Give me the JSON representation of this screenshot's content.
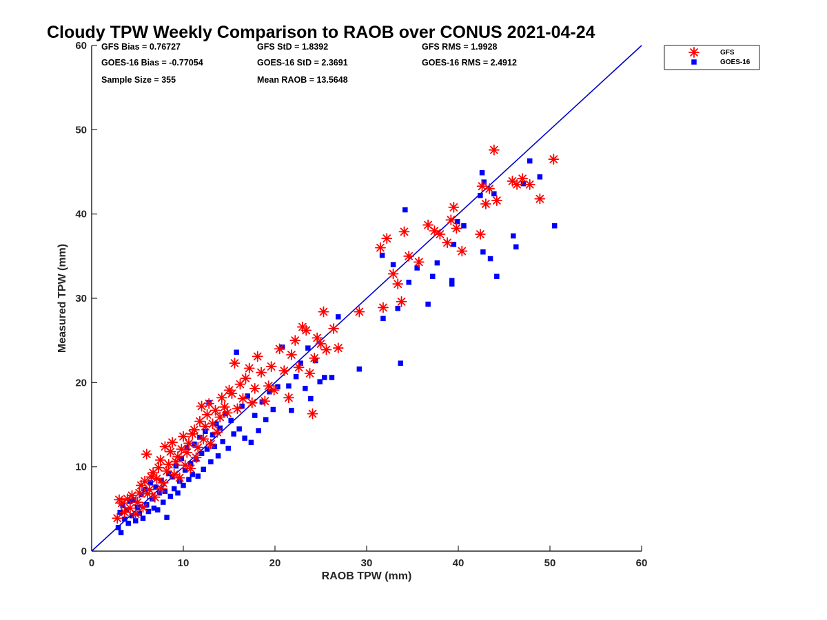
{
  "chart_data": {
    "type": "scatter",
    "title": "Cloudy TPW Weekly Comparison to RAOB over CONUS 2021-04-24",
    "xlabel": "RAOB TPW (mm)",
    "ylabel": "Measured TPW (mm)",
    "xlim": [
      0,
      60
    ],
    "ylim": [
      0,
      60
    ],
    "xticks": [
      "0",
      "10",
      "20",
      "30",
      "40",
      "50",
      "60"
    ],
    "yticks": [
      "0",
      "10",
      "20",
      "30",
      "40",
      "50",
      "60"
    ],
    "grid": false,
    "legend_position": "top-right outside",
    "stats": [
      [
        "GFS Bias = 0.76727",
        "GFS StD = 1.8392",
        "GFS RMS = 1.9928"
      ],
      [
        "GOES-16 Bias = -0.77054",
        "GOES-16 StD = 2.3691",
        "GOES-16 RMS = 2.4912"
      ],
      [
        "Sample Size = 355",
        "Mean RAOB = 13.5648",
        ""
      ]
    ],
    "reference_line": {
      "from": [
        0,
        0
      ],
      "to": [
        60,
        60
      ],
      "color": "#0000cc"
    },
    "series": [
      {
        "name": "GFS",
        "marker": "asterisk",
        "color": "#ff0000",
        "points": [
          [
            2.8,
            3.9
          ],
          [
            3.0,
            6.1
          ],
          [
            3.3,
            5.7
          ],
          [
            3.6,
            4.6
          ],
          [
            3.9,
            6.2
          ],
          [
            4.2,
            5.1
          ],
          [
            4.4,
            6.6
          ],
          [
            4.8,
            4.4
          ],
          [
            5.0,
            5.8
          ],
          [
            5.2,
            6.9
          ],
          [
            5.4,
            7.8
          ],
          [
            5.6,
            5.2
          ],
          [
            5.8,
            8.3
          ],
          [
            6.0,
            11.5
          ],
          [
            6.1,
            6.8
          ],
          [
            6.3,
            7.3
          ],
          [
            6.5,
            8.8
          ],
          [
            6.7,
            9.3
          ],
          [
            6.9,
            6.4
          ],
          [
            7.1,
            8.6
          ],
          [
            7.3,
            9.9
          ],
          [
            7.5,
            10.8
          ],
          [
            7.6,
            7.4
          ],
          [
            7.8,
            8.1
          ],
          [
            8.0,
            12.4
          ],
          [
            8.2,
            9.5
          ],
          [
            8.4,
            10.3
          ],
          [
            8.6,
            11.8
          ],
          [
            8.8,
            12.9
          ],
          [
            9.0,
            9.1
          ],
          [
            9.2,
            10.6
          ],
          [
            9.4,
            11.2
          ],
          [
            9.6,
            8.7
          ],
          [
            9.8,
            12.1
          ],
          [
            10.0,
            13.6
          ],
          [
            10.2,
            10.2
          ],
          [
            10.4,
            11.7
          ],
          [
            10.6,
            12.8
          ],
          [
            10.8,
            9.8
          ],
          [
            11.0,
            13.9
          ],
          [
            11.2,
            14.4
          ],
          [
            11.4,
            11.1
          ],
          [
            11.6,
            12.3
          ],
          [
            11.8,
            15.4
          ],
          [
            12.0,
            17.2
          ],
          [
            12.2,
            13.3
          ],
          [
            12.4,
            14.8
          ],
          [
            12.6,
            16.2
          ],
          [
            12.8,
            17.5
          ],
          [
            13.0,
            12.7
          ],
          [
            13.2,
            15.1
          ],
          [
            13.5,
            16.7
          ],
          [
            13.7,
            14.1
          ],
          [
            14.0,
            15.9
          ],
          [
            14.2,
            18.2
          ],
          [
            14.5,
            17.1
          ],
          [
            14.8,
            16.4
          ],
          [
            15.0,
            19.1
          ],
          [
            15.3,
            18.7
          ],
          [
            15.6,
            22.3
          ],
          [
            15.9,
            16.9
          ],
          [
            16.2,
            19.8
          ],
          [
            16.5,
            18.1
          ],
          [
            16.8,
            20.5
          ],
          [
            17.2,
            21.7
          ],
          [
            17.5,
            17.6
          ],
          [
            17.8,
            19.3
          ],
          [
            18.1,
            23.1
          ],
          [
            18.5,
            21.2
          ],
          [
            18.9,
            17.8
          ],
          [
            19.3,
            19.6
          ],
          [
            19.6,
            21.9
          ],
          [
            19.9,
            19.1
          ],
          [
            20.5,
            24.0
          ],
          [
            21.0,
            21.4
          ],
          [
            21.5,
            18.2
          ],
          [
            21.8,
            23.3
          ],
          [
            22.2,
            25.0
          ],
          [
            22.6,
            21.8
          ],
          [
            23.0,
            26.6
          ],
          [
            23.4,
            26.2
          ],
          [
            23.8,
            21.1
          ],
          [
            24.1,
            16.3
          ],
          [
            24.3,
            22.9
          ],
          [
            24.6,
            25.3
          ],
          [
            25.0,
            24.6
          ],
          [
            25.3,
            28.4
          ],
          [
            25.6,
            23.9
          ],
          [
            26.4,
            26.4
          ],
          [
            26.9,
            24.1
          ],
          [
            29.2,
            28.4
          ],
          [
            31.5,
            36.0
          ],
          [
            31.8,
            28.9
          ],
          [
            32.2,
            37.1
          ],
          [
            32.9,
            32.9
          ],
          [
            33.4,
            31.7
          ],
          [
            33.8,
            29.6
          ],
          [
            34.1,
            37.9
          ],
          [
            34.6,
            35.0
          ],
          [
            35.7,
            34.3
          ],
          [
            36.7,
            38.7
          ],
          [
            37.4,
            38.0
          ],
          [
            38.0,
            37.6
          ],
          [
            38.8,
            36.6
          ],
          [
            39.2,
            39.3
          ],
          [
            39.5,
            40.8
          ],
          [
            39.8,
            38.3
          ],
          [
            40.4,
            35.6
          ],
          [
            42.4,
            37.6
          ],
          [
            42.6,
            43.3
          ],
          [
            43.0,
            41.2
          ],
          [
            43.4,
            43.0
          ],
          [
            43.9,
            47.6
          ],
          [
            44.2,
            41.6
          ],
          [
            45.9,
            43.9
          ],
          [
            46.4,
            43.5
          ],
          [
            47.0,
            44.2
          ],
          [
            47.8,
            43.5
          ],
          [
            48.9,
            41.8
          ],
          [
            50.4,
            46.5
          ]
        ]
      },
      {
        "name": "GOES-16",
        "marker": "square",
        "color": "#0000ff",
        "points": [
          [
            2.9,
            2.8
          ],
          [
            3.1,
            4.6
          ],
          [
            3.2,
            2.2
          ],
          [
            3.4,
            5.4
          ],
          [
            3.6,
            3.8
          ],
          [
            3.8,
            4.9
          ],
          [
            4.0,
            3.3
          ],
          [
            4.2,
            5.9
          ],
          [
            4.4,
            4.2
          ],
          [
            4.6,
            6.1
          ],
          [
            4.8,
            3.6
          ],
          [
            5.0,
            5.2
          ],
          [
            5.2,
            4.5
          ],
          [
            5.4,
            6.7
          ],
          [
            5.6,
            3.9
          ],
          [
            5.8,
            7.3
          ],
          [
            6.0,
            5.5
          ],
          [
            6.2,
            4.7
          ],
          [
            6.4,
            8.1
          ],
          [
            6.6,
            6.2
          ],
          [
            6.8,
            5.1
          ],
          [
            7.0,
            7.6
          ],
          [
            7.2,
            4.9
          ],
          [
            7.4,
            6.9
          ],
          [
            7.6,
            8.4
          ],
          [
            7.8,
            5.8
          ],
          [
            8.0,
            7.1
          ],
          [
            8.2,
            4.0
          ],
          [
            8.4,
            9.2
          ],
          [
            8.6,
            6.5
          ],
          [
            8.8,
            8.8
          ],
          [
            9.0,
            7.4
          ],
          [
            9.2,
            10.1
          ],
          [
            9.4,
            6.9
          ],
          [
            9.6,
            8.3
          ],
          [
            9.8,
            11.0
          ],
          [
            10.0,
            7.8
          ],
          [
            10.2,
            9.6
          ],
          [
            10.4,
            12.3
          ],
          [
            10.6,
            8.5
          ],
          [
            10.8,
            10.4
          ],
          [
            11.0,
            9.1
          ],
          [
            11.2,
            12.7
          ],
          [
            11.4,
            10.9
          ],
          [
            11.6,
            8.9
          ],
          [
            11.8,
            13.5
          ],
          [
            12.0,
            11.6
          ],
          [
            12.2,
            9.7
          ],
          [
            12.4,
            14.2
          ],
          [
            12.6,
            12.1
          ],
          [
            12.8,
            17.6
          ],
          [
            13.0,
            10.6
          ],
          [
            13.2,
            13.8
          ],
          [
            13.4,
            12.4
          ],
          [
            13.6,
            15.1
          ],
          [
            13.8,
            11.3
          ],
          [
            14.0,
            14.6
          ],
          [
            14.3,
            13.0
          ],
          [
            14.6,
            16.3
          ],
          [
            14.9,
            12.2
          ],
          [
            15.2,
            15.5
          ],
          [
            15.5,
            13.9
          ],
          [
            15.8,
            23.6
          ],
          [
            16.1,
            14.5
          ],
          [
            16.4,
            17.2
          ],
          [
            16.7,
            13.4
          ],
          [
            17.0,
            18.4
          ],
          [
            17.4,
            12.9
          ],
          [
            17.8,
            16.1
          ],
          [
            18.2,
            14.3
          ],
          [
            18.6,
            17.7
          ],
          [
            19.0,
            15.6
          ],
          [
            19.4,
            18.9
          ],
          [
            19.8,
            16.8
          ],
          [
            20.3,
            19.5
          ],
          [
            20.8,
            24.2
          ],
          [
            21.5,
            19.6
          ],
          [
            21.8,
            16.7
          ],
          [
            22.3,
            20.7
          ],
          [
            22.8,
            22.3
          ],
          [
            23.3,
            19.3
          ],
          [
            23.6,
            24.1
          ],
          [
            23.9,
            18.1
          ],
          [
            24.4,
            22.6
          ],
          [
            24.9,
            20.1
          ],
          [
            25.4,
            20.6
          ],
          [
            26.2,
            20.6
          ],
          [
            26.9,
            27.8
          ],
          [
            29.2,
            21.6
          ],
          [
            31.7,
            35.1
          ],
          [
            31.8,
            27.6
          ],
          [
            32.9,
            34.0
          ],
          [
            33.4,
            28.8
          ],
          [
            33.7,
            22.3
          ],
          [
            34.2,
            40.5
          ],
          [
            34.6,
            31.9
          ],
          [
            35.5,
            33.6
          ],
          [
            36.7,
            29.3
          ],
          [
            37.2,
            32.6
          ],
          [
            37.7,
            34.2
          ],
          [
            39.3,
            32.1
          ],
          [
            39.3,
            31.7
          ],
          [
            39.5,
            36.4
          ],
          [
            39.9,
            39.1
          ],
          [
            40.6,
            38.6
          ],
          [
            42.4,
            42.2
          ],
          [
            42.6,
            44.9
          ],
          [
            42.7,
            35.5
          ],
          [
            42.8,
            43.8
          ],
          [
            43.5,
            34.7
          ],
          [
            43.9,
            42.4
          ],
          [
            44.2,
            32.6
          ],
          [
            46.0,
            37.4
          ],
          [
            46.3,
            36.1
          ],
          [
            47.1,
            43.6
          ],
          [
            47.8,
            46.3
          ],
          [
            48.9,
            44.4
          ],
          [
            50.5,
            38.6
          ]
        ]
      }
    ]
  }
}
